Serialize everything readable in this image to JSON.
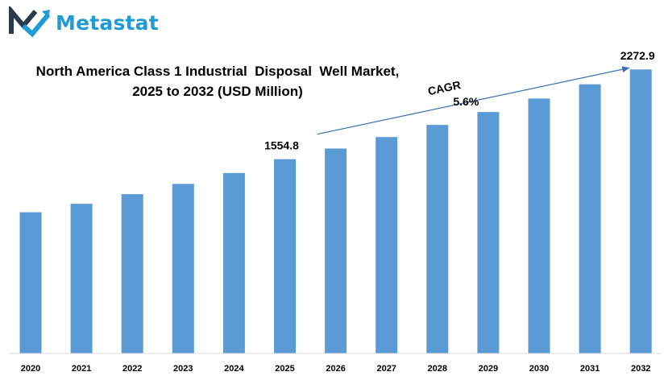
{
  "brand": {
    "name": "Metastat",
    "accent": "#1f9bd6",
    "dark": "#2b3a4a"
  },
  "chart_data": {
    "type": "bar",
    "title_line1": "North America Class 1 Industrial  Disposal  Well Market,",
    "title_line2": "2025 to 2032 (USD Million)",
    "categories": [
      "2020",
      "2021",
      "2022",
      "2023",
      "2024",
      "2025",
      "2026",
      "2027",
      "2028",
      "2029",
      "2030",
      "2031",
      "2032"
    ],
    "values": [
      1130,
      1198,
      1275,
      1357,
      1444,
      1554.8,
      1640,
      1732,
      1829,
      1932,
      2040,
      2154,
      2272.9
    ],
    "ylim": [
      0,
      2500
    ],
    "grid": false,
    "bar_color": "#5b9bd5",
    "data_labels": [
      {
        "index": 5,
        "text": "1554.8"
      },
      {
        "index": 12,
        "text": "2272.9"
      }
    ],
    "annotation": {
      "label": "CAGR",
      "value": "5.6%",
      "from_index": 5,
      "to_index": 12
    }
  }
}
